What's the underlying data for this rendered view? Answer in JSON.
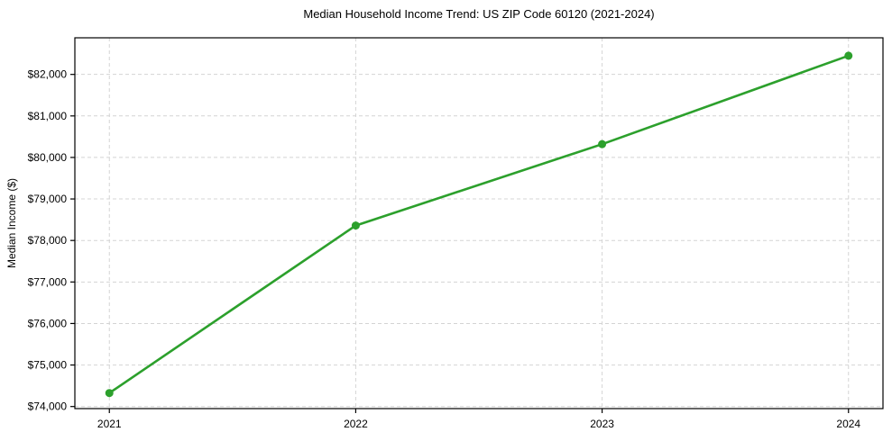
{
  "figure": {
    "title": "Median Household Income Trend: US ZIP Code 60120 (2021-2024)",
    "ylabel": "Median Income ($)"
  },
  "chart_data": {
    "type": "line",
    "title": "Median Household Income Trend: US ZIP Code 60120 (2021-2024)",
    "xlabel": "",
    "ylabel": "Median Income ($)",
    "x": [
      2021,
      2022,
      2023,
      2024
    ],
    "x_tick_labels": [
      "2021",
      "2022",
      "2023",
      "2024"
    ],
    "values": [
      74325,
      78360,
      80320,
      82450
    ],
    "y_ticks": [
      74000,
      75000,
      76000,
      77000,
      78000,
      79000,
      80000,
      81000,
      82000
    ],
    "y_tick_labels": [
      "$74,000",
      "$75,000",
      "$76,000",
      "$77,000",
      "$78,000",
      "$79,000",
      "$80,000",
      "$81,000",
      "$82,000"
    ],
    "xlim": [
      2020.86,
      2024.14
    ],
    "ylim": [
      73950,
      82882
    ],
    "grid": true,
    "grid_style": "dashed",
    "legend": "none",
    "line_color": "#2ca02c",
    "grid_color": "#d4d4d4",
    "spine_color": "#000000",
    "marker": "circle",
    "marker_size": 4.5,
    "line_width": 2.6,
    "background": "#ffffff"
  }
}
